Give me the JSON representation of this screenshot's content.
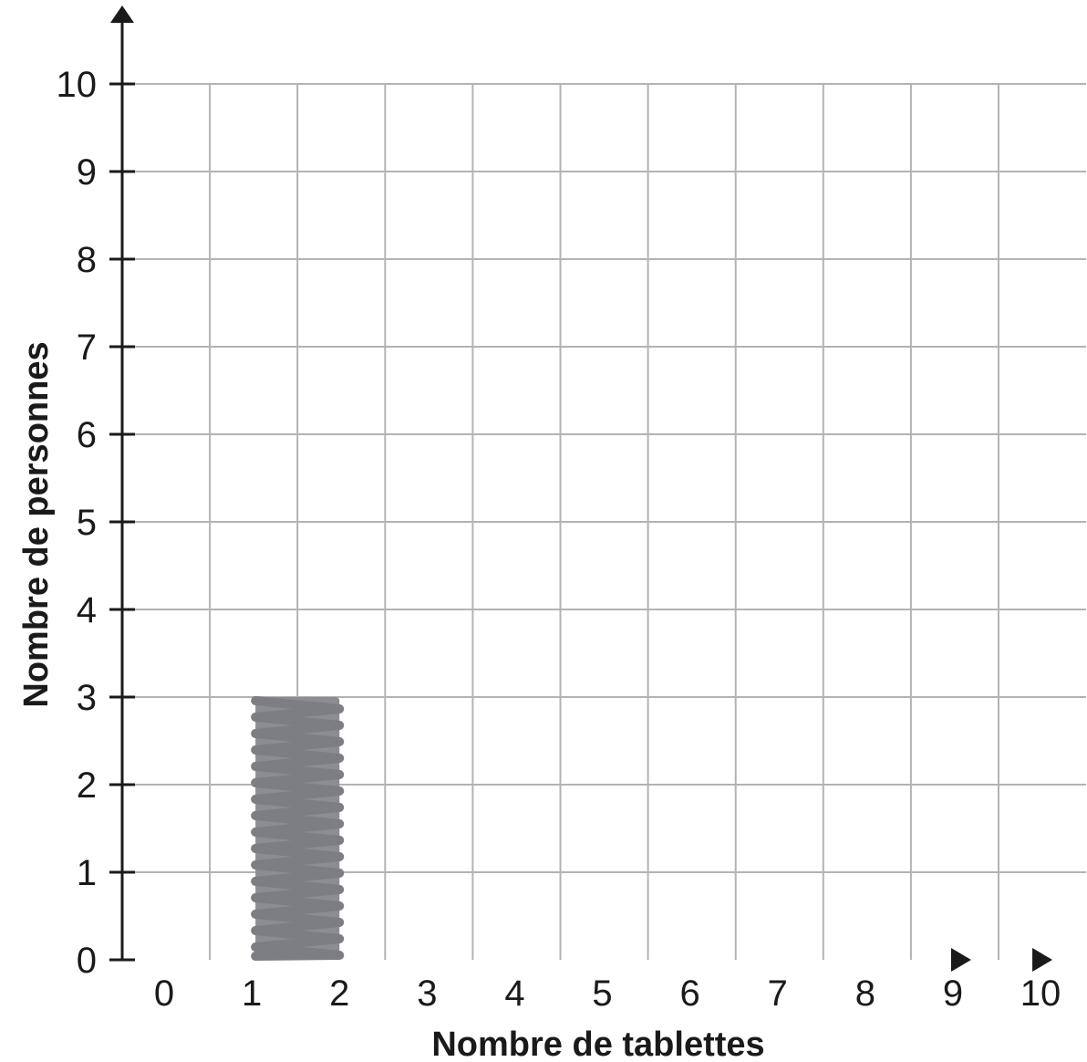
{
  "chart_data": {
    "type": "bar",
    "xlabel": "Nombre de tablettes",
    "ylabel": "Nombre de personnes",
    "x_ticks": [
      "0",
      "1",
      "2",
      "3",
      "4",
      "5",
      "6",
      "7",
      "8",
      "9",
      "10"
    ],
    "y_ticks": [
      "0",
      "1",
      "2",
      "3",
      "4",
      "5",
      "6",
      "7",
      "8",
      "9",
      "10"
    ],
    "xlim": [
      0,
      10
    ],
    "ylim": [
      0,
      10
    ],
    "grid": true,
    "bars": [
      {
        "category": "2",
        "value": 3
      }
    ],
    "style": "hand-shaded bar on grid",
    "colors": {
      "bar": "#8c8d90",
      "grid": "#b3b3b3",
      "axis": "#1a1a1a"
    }
  }
}
